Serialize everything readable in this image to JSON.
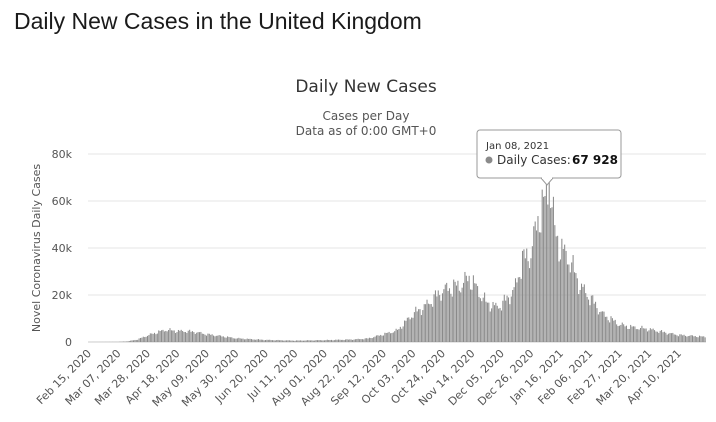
{
  "page": {
    "title": "Daily New Cases in the United Kingdom"
  },
  "chart_data": {
    "type": "bar",
    "title": "Daily New Cases",
    "subtitle_line1": "Cases per Day",
    "subtitle_line2": "Data as of 0:00 GMT+0",
    "ylabel": "Novel Coronavirus Daily Cases",
    "xlabel": "",
    "ylim": [
      0,
      80000
    ],
    "y_ticks": [
      0,
      20000,
      40000,
      60000,
      80000
    ],
    "y_tick_labels": [
      "0",
      "20k",
      "40k",
      "60k",
      "80k"
    ],
    "x_tick_labels": [
      "Feb 15, 2020",
      "Mar 07, 2020",
      "Mar 28, 2020",
      "Apr 18, 2020",
      "May 09, 2020",
      "May 30, 2020",
      "Jun 20, 2020",
      "Jul 11, 2020",
      "Aug 01, 2020",
      "Aug 22, 2020",
      "Sep 12, 2020",
      "Oct 03, 2020",
      "Oct 24, 2020",
      "Nov 14, 2020",
      "Dec 05, 2020",
      "Dec 26, 2020",
      "Jan 16, 2021",
      "Feb 06, 2021",
      "Feb 27, 2021",
      "Mar 20, 2021",
      "Apr 10, 2021"
    ],
    "grid": true,
    "legend": "none",
    "bar_color": "#8a8a8a",
    "date_range": [
      "Feb 15, 2020",
      "Apr 29, 2021"
    ],
    "series": [
      {
        "name": "Daily Cases",
        "interpolated_from_points": true,
        "points": [
          [
            "Feb 15, 2020",
            0
          ],
          [
            "Mar 07, 2020",
            50
          ],
          [
            "Mar 14, 2020",
            300
          ],
          [
            "Mar 21, 2020",
            1100
          ],
          [
            "Mar 28, 2020",
            2800
          ],
          [
            "Apr 04, 2020",
            4200
          ],
          [
            "Apr 10, 2020",
            5200
          ],
          [
            "Apr 18, 2020",
            4700
          ],
          [
            "Apr 25, 2020",
            4600
          ],
          [
            "May 02, 2020",
            4200
          ],
          [
            "May 09, 2020",
            3300
          ],
          [
            "May 16, 2020",
            2800
          ],
          [
            "May 23, 2020",
            2200
          ],
          [
            "May 30, 2020",
            1600
          ],
          [
            "Jun 10, 2020",
            1200
          ],
          [
            "Jun 20, 2020",
            900
          ],
          [
            "Jul 11, 2020",
            600
          ],
          [
            "Aug 01, 2020",
            800
          ],
          [
            "Aug 22, 2020",
            1100
          ],
          [
            "Sep 01, 2020",
            1500
          ],
          [
            "Sep 12, 2020",
            3300
          ],
          [
            "Sep 22, 2020",
            5000
          ],
          [
            "Oct 03, 2020",
            12000
          ],
          [
            "Oct 12, 2020",
            15500
          ],
          [
            "Oct 24, 2020",
            22000
          ],
          [
            "Oct 31, 2020",
            23500
          ],
          [
            "Nov 05, 2020",
            24000
          ],
          [
            "Nov 12, 2020",
            27500
          ],
          [
            "Nov 14, 2020",
            26000
          ],
          [
            "Nov 24, 2020",
            17000
          ],
          [
            "Dec 01, 2020",
            15000
          ],
          [
            "Dec 05, 2020",
            16000
          ],
          [
            "Dec 14, 2020",
            22000
          ],
          [
            "Dec 20, 2020",
            35000
          ],
          [
            "Dec 26, 2020",
            38000
          ],
          [
            "Dec 31, 2020",
            53000
          ],
          [
            "Jan 05, 2021",
            60000
          ],
          [
            "Jan 08, 2021",
            67928
          ],
          [
            "Jan 12, 2021",
            48000
          ],
          [
            "Jan 16, 2021",
            40000
          ],
          [
            "Jan 22, 2021",
            36000
          ],
          [
            "Jan 30, 2021",
            24000
          ],
          [
            "Feb 06, 2021",
            19000
          ],
          [
            "Feb 15, 2021",
            12000
          ],
          [
            "Feb 27, 2021",
            7500
          ],
          [
            "Mar 06, 2021",
            6500
          ],
          [
            "Mar 20, 2021",
            5500
          ],
          [
            "Apr 01, 2021",
            4000
          ],
          [
            "Apr 10, 2021",
            3000
          ],
          [
            "Apr 29, 2021",
            2200
          ]
        ]
      }
    ],
    "tooltip": {
      "date": "Jan 08, 2021",
      "label": "Daily Cases:",
      "value": "67 928",
      "value_num": 67928
    }
  }
}
